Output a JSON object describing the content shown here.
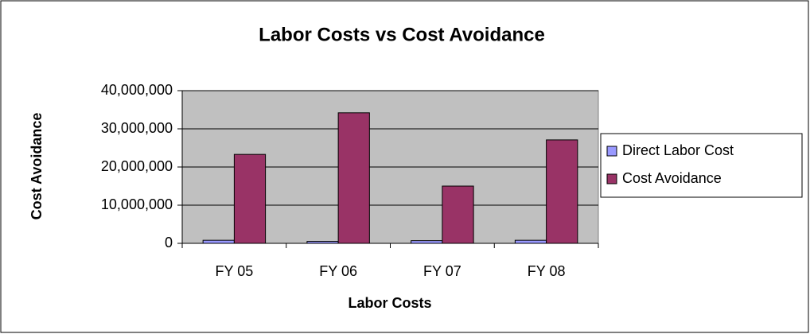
{
  "chart_data": {
    "type": "bar",
    "title": "Labor Costs vs Cost Avoidance",
    "x_label": "Labor Costs",
    "y_label": "Cost Avoidance",
    "categories": [
      "FY 05",
      "FY 06",
      "FY 07",
      "FY 08"
    ],
    "series": [
      {
        "name": "Direct Labor Cost",
        "color": "#9999ff",
        "values": [
          800000,
          500000,
          700000,
          800000
        ]
      },
      {
        "name": "Cost Avoidance",
        "color": "#993366",
        "values": [
          23300000,
          34200000,
          15000000,
          27100000
        ]
      }
    ],
    "ylim": [
      0,
      40000000
    ],
    "yticks": [
      0,
      {
        "value": 10000000,
        "label": "10,000,000"
      },
      {
        "value": 20000000,
        "label": "20,000,000"
      },
      {
        "value": 30000000,
        "label": "30,000,000"
      },
      {
        "value": 40000000,
        "label": "40,000,000"
      }
    ],
    "grid": true,
    "legend": "right"
  }
}
